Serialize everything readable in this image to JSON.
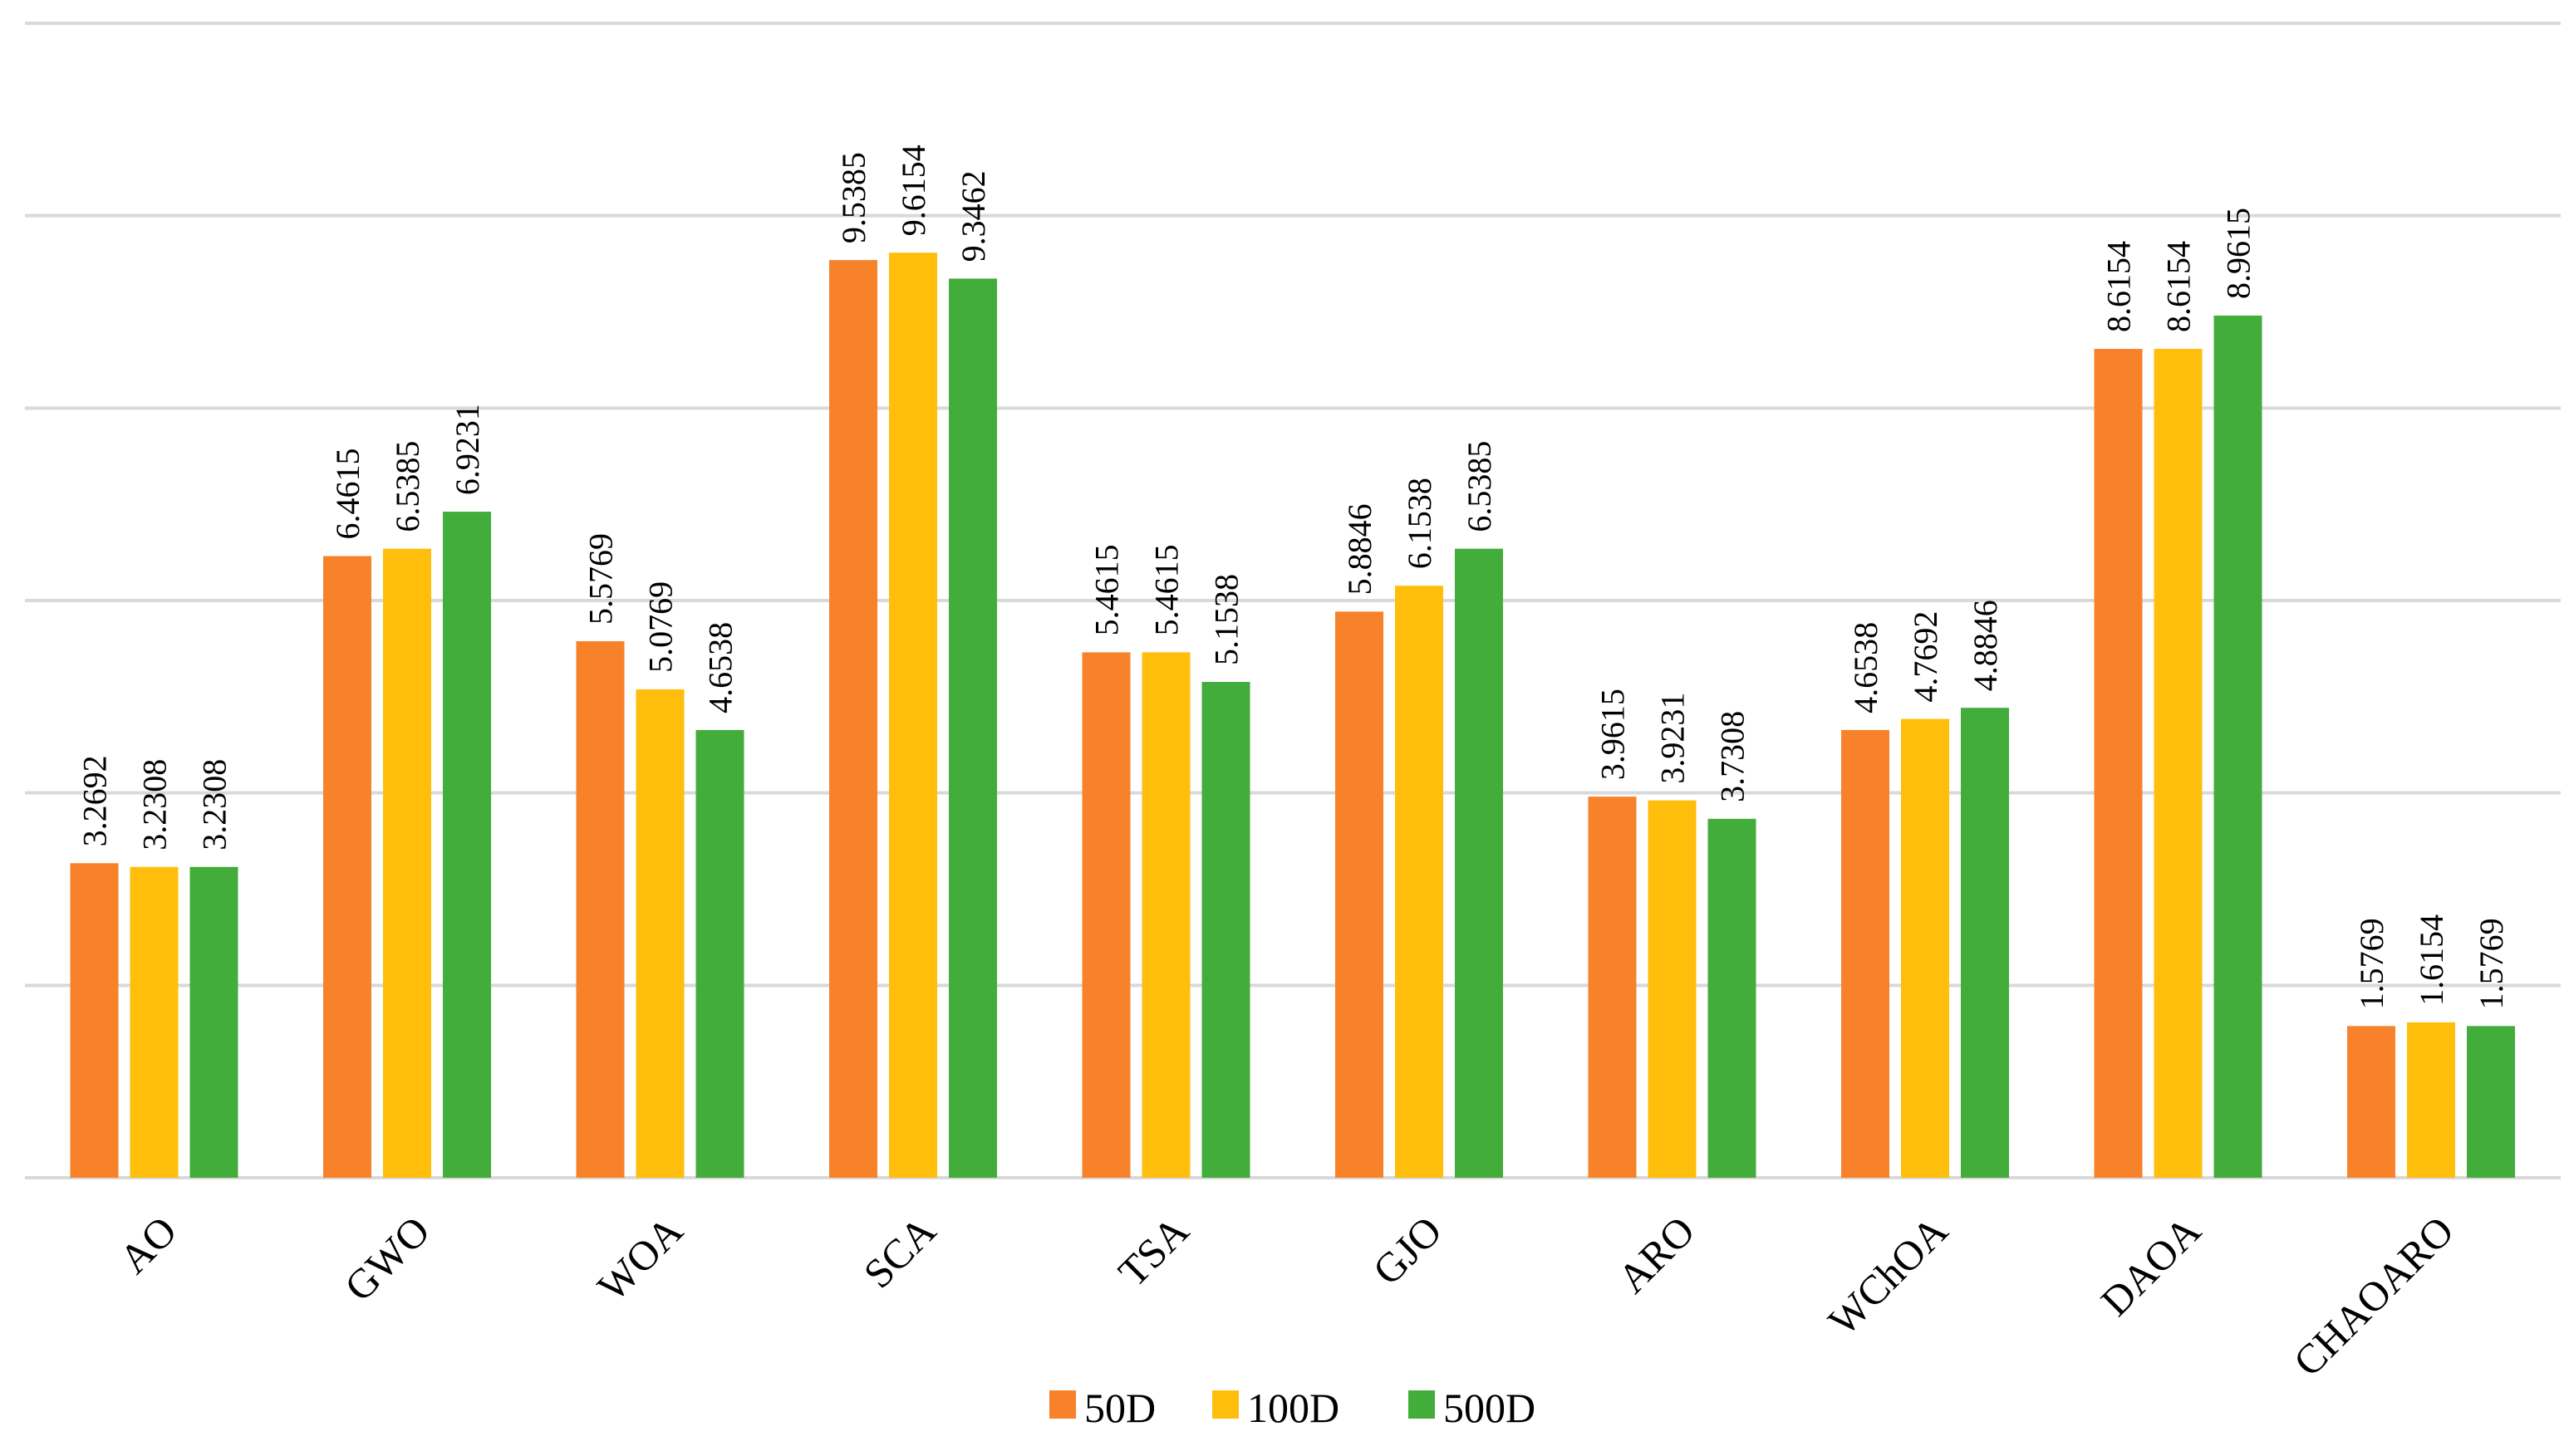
{
  "chart_data": {
    "type": "bar",
    "title": "",
    "xlabel": "",
    "ylabel": "",
    "ylim": [
      0,
      12
    ],
    "grid": true,
    "categories": [
      "AO",
      "GWO",
      "WOA",
      "SCA",
      "TSA",
      "GJO",
      "ARO",
      "WChOA",
      "DAOA",
      "CHAOARO"
    ],
    "series": [
      {
        "name": "50D",
        "color": "#f7822a",
        "values": [
          3.2692,
          6.4615,
          5.5769,
          9.5385,
          5.4615,
          5.8846,
          3.9615,
          4.6538,
          8.6154,
          1.5769
        ],
        "labels": [
          "3.2692",
          "6.4615",
          "5.5769",
          "9.5385",
          "5.4615",
          "5.8846",
          "3.9615",
          "4.6538",
          "8.6154",
          "1.5769"
        ]
      },
      {
        "name": "100D",
        "color": "#ffbe0b",
        "values": [
          3.2308,
          6.5385,
          5.0769,
          9.6154,
          5.4615,
          6.1538,
          3.9231,
          4.7692,
          8.6154,
          1.6154
        ],
        "labels": [
          "3.2308",
          "6.5385",
          "5.0769",
          "9.6154",
          "5.4615",
          "6.1538",
          "3.9231",
          "4.7692",
          "8.6154",
          "1.6154"
        ]
      },
      {
        "name": "500D",
        "color": "#43ad3c",
        "values": [
          3.2308,
          6.9231,
          4.6538,
          9.3462,
          5.1538,
          6.5385,
          3.7308,
          4.8846,
          8.9615,
          1.5769
        ],
        "labels": [
          "3.2308",
          "6.9231",
          "4.6538",
          "9.3462",
          "5.1538",
          "6.5385",
          "3.7308",
          "4.8846",
          "8.9615",
          "1.5769"
        ]
      }
    ],
    "legend": "bottom-center"
  }
}
